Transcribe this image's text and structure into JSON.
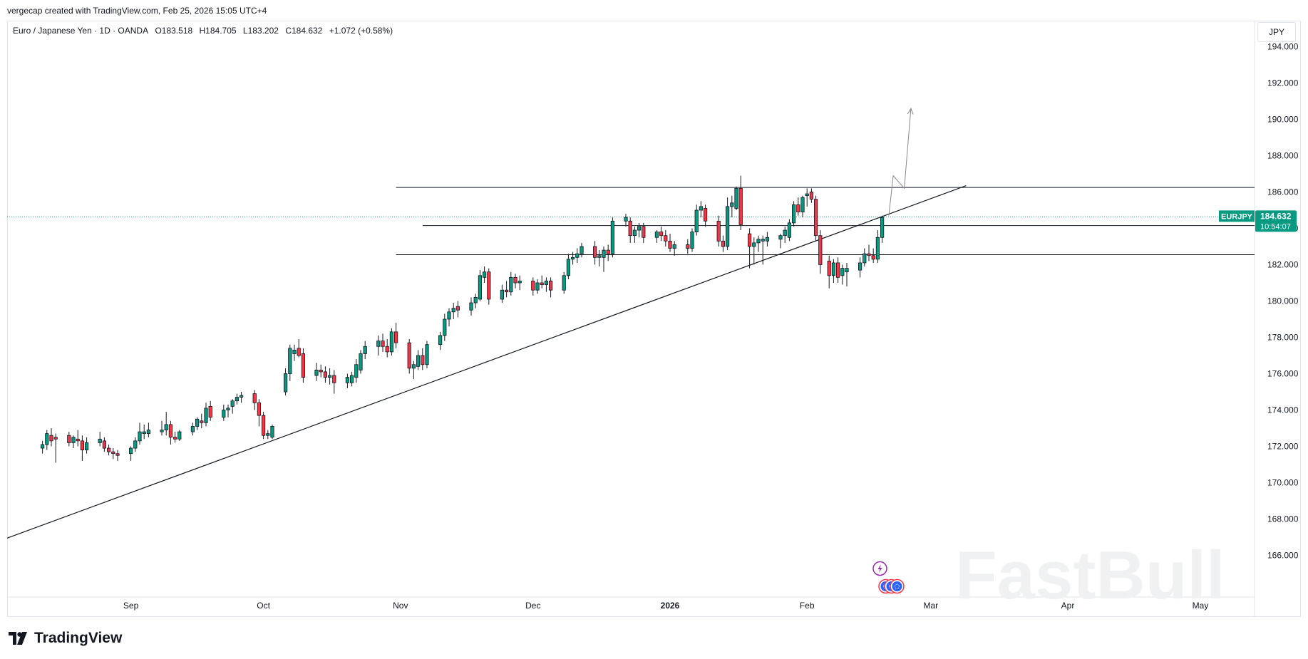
{
  "header": {
    "attribution": "vergecap created with TradingView.com, Feb 25, 2026 15:05 UTC+4"
  },
  "symbol": {
    "name": "Euro / Japanese Yen · 1D · OANDA",
    "open": "O183.518",
    "high": "H184.705",
    "low": "L183.202",
    "close": "C184.632",
    "change": "+1.072 (+0.58%)"
  },
  "currency_button": "JPY",
  "price_tag": {
    "ticker": "EURJPY",
    "price": "184.632",
    "countdown": "10:54:07",
    "color": "#089981"
  },
  "footer": {
    "brand": "TradingView"
  },
  "watermark": "FastBull",
  "colors": {
    "up": "#089981",
    "down": "#f23645",
    "line": "#131722",
    "drawing": "#888888"
  },
  "chart_data": {
    "type": "candlestick",
    "instrument": "EURJPY",
    "interval": "1D",
    "ylim": [
      164.8,
      195.0
    ],
    "y_ticks": [
      166,
      168,
      170,
      172,
      174,
      176,
      178,
      180,
      182,
      184,
      186,
      188,
      190,
      192,
      194
    ],
    "y_tick_labels": [
      "166.000",
      "168.000",
      "170.000",
      "172.000",
      "174.000",
      "176.000",
      "178.000",
      "180.000",
      "182.000",
      "184.000",
      "186.000",
      "188.000",
      "190.000",
      "192.000",
      "194.000"
    ],
    "x_tick_labels": [
      {
        "label": "Sep",
        "day": 28
      },
      {
        "label": "Oct",
        "day": 58
      },
      {
        "label": "Nov",
        "day": 89
      },
      {
        "label": "Dec",
        "day": 119
      },
      {
        "label": "2026",
        "day": 150,
        "bold": true
      },
      {
        "label": "Feb",
        "day": 181
      },
      {
        "label": "Mar",
        "day": 209
      },
      {
        "label": "Apr",
        "day": 240
      },
      {
        "label": "May",
        "day": 270
      }
    ],
    "candles": [
      {
        "day": 8,
        "o": 171.9,
        "h": 172.3,
        "l": 171.6,
        "c": 172.1
      },
      {
        "day": 9,
        "o": 172.1,
        "h": 172.9,
        "l": 171.8,
        "c": 172.7
      },
      {
        "day": 10,
        "o": 172.6,
        "h": 173.0,
        "l": 172.0,
        "c": 172.3
      },
      {
        "day": 11,
        "o": 172.5,
        "h": 172.7,
        "l": 171.1,
        "c": 172.4
      },
      {
        "day": 14,
        "o": 172.6,
        "h": 172.8,
        "l": 172.0,
        "c": 172.2
      },
      {
        "day": 15,
        "o": 172.2,
        "h": 172.6,
        "l": 171.9,
        "c": 172.5
      },
      {
        "day": 16,
        "o": 172.4,
        "h": 172.9,
        "l": 172.0,
        "c": 172.3
      },
      {
        "day": 17,
        "o": 172.3,
        "h": 172.6,
        "l": 171.2,
        "c": 171.8
      },
      {
        "day": 18,
        "o": 171.8,
        "h": 172.5,
        "l": 171.6,
        "c": 172.2
      },
      {
        "day": 21,
        "o": 172.2,
        "h": 172.8,
        "l": 172.0,
        "c": 172.4
      },
      {
        "day": 22,
        "o": 172.3,
        "h": 172.5,
        "l": 171.7,
        "c": 171.9
      },
      {
        "day": 23,
        "o": 171.9,
        "h": 172.1,
        "l": 171.5,
        "c": 171.7
      },
      {
        "day": 24,
        "o": 171.7,
        "h": 171.9,
        "l": 171.3,
        "c": 171.6
      },
      {
        "day": 25,
        "o": 171.6,
        "h": 171.8,
        "l": 171.2,
        "c": 171.5
      },
      {
        "day": 28,
        "o": 171.6,
        "h": 172.0,
        "l": 171.2,
        "c": 171.9
      },
      {
        "day": 29,
        "o": 171.9,
        "h": 172.5,
        "l": 171.7,
        "c": 172.3
      },
      {
        "day": 30,
        "o": 172.3,
        "h": 173.3,
        "l": 172.1,
        "c": 172.8
      },
      {
        "day": 31,
        "o": 172.7,
        "h": 173.2,
        "l": 172.4,
        "c": 172.8
      },
      {
        "day": 32,
        "o": 172.7,
        "h": 173.3,
        "l": 172.5,
        "c": 172.9
      },
      {
        "day": 35,
        "o": 172.8,
        "h": 173.4,
        "l": 172.6,
        "c": 172.9
      },
      {
        "day": 36,
        "o": 172.9,
        "h": 173.9,
        "l": 172.6,
        "c": 173.2
      },
      {
        "day": 37,
        "o": 173.2,
        "h": 173.4,
        "l": 172.1,
        "c": 172.5
      },
      {
        "day": 38,
        "o": 172.5,
        "h": 172.8,
        "l": 172.2,
        "c": 172.4
      },
      {
        "day": 39,
        "o": 172.4,
        "h": 172.9,
        "l": 172.3,
        "c": 172.8
      },
      {
        "day": 42,
        "o": 172.8,
        "h": 173.3,
        "l": 172.6,
        "c": 173.1
      },
      {
        "day": 43,
        "o": 173.1,
        "h": 173.6,
        "l": 172.9,
        "c": 173.5
      },
      {
        "day": 44,
        "o": 173.4,
        "h": 173.8,
        "l": 173.0,
        "c": 173.3
      },
      {
        "day": 45,
        "o": 173.3,
        "h": 174.4,
        "l": 173.1,
        "c": 174.1
      },
      {
        "day": 46,
        "o": 174.2,
        "h": 174.5,
        "l": 173.4,
        "c": 173.6
      },
      {
        "day": 49,
        "o": 173.6,
        "h": 174.3,
        "l": 173.4,
        "c": 174.0
      },
      {
        "day": 50,
        "o": 174.0,
        "h": 174.3,
        "l": 173.6,
        "c": 174.1
      },
      {
        "day": 51,
        "o": 174.2,
        "h": 174.6,
        "l": 173.8,
        "c": 174.5
      },
      {
        "day": 52,
        "o": 174.5,
        "h": 174.9,
        "l": 174.3,
        "c": 174.7
      },
      {
        "day": 53,
        "o": 174.7,
        "h": 175.0,
        "l": 174.4,
        "c": 174.8
      },
      {
        "day": 56,
        "o": 174.9,
        "h": 175.1,
        "l": 174.0,
        "c": 174.4
      },
      {
        "day": 57,
        "o": 174.4,
        "h": 174.6,
        "l": 173.1,
        "c": 173.7
      },
      {
        "day": 58,
        "o": 173.7,
        "h": 173.9,
        "l": 172.4,
        "c": 172.6
      },
      {
        "day": 59,
        "o": 172.6,
        "h": 172.9,
        "l": 172.4,
        "c": 172.7
      },
      {
        "day": 60,
        "o": 172.5,
        "h": 173.2,
        "l": 172.4,
        "c": 173.1
      },
      {
        "day": 63,
        "o": 175.0,
        "h": 176.3,
        "l": 174.8,
        "c": 176.0
      },
      {
        "day": 64,
        "o": 176.0,
        "h": 177.6,
        "l": 175.6,
        "c": 177.4
      },
      {
        "day": 65,
        "o": 177.1,
        "h": 177.6,
        "l": 176.7,
        "c": 177.3
      },
      {
        "day": 66,
        "o": 177.4,
        "h": 177.9,
        "l": 176.9,
        "c": 177.0
      },
      {
        "day": 67,
        "o": 177.1,
        "h": 177.4,
        "l": 175.5,
        "c": 175.8
      },
      {
        "day": 70,
        "o": 175.9,
        "h": 176.6,
        "l": 175.6,
        "c": 176.2
      },
      {
        "day": 71,
        "o": 176.2,
        "h": 176.5,
        "l": 175.8,
        "c": 176.1
      },
      {
        "day": 72,
        "o": 176.1,
        "h": 176.4,
        "l": 175.5,
        "c": 175.8
      },
      {
        "day": 73,
        "o": 175.8,
        "h": 176.3,
        "l": 175.4,
        "c": 175.9
      },
      {
        "day": 74,
        "o": 175.9,
        "h": 176.2,
        "l": 174.9,
        "c": 175.5
      },
      {
        "day": 77,
        "o": 175.5,
        "h": 176.0,
        "l": 175.2,
        "c": 175.8
      },
      {
        "day": 78,
        "o": 175.5,
        "h": 176.1,
        "l": 175.3,
        "c": 175.9
      },
      {
        "day": 79,
        "o": 175.8,
        "h": 176.8,
        "l": 175.5,
        "c": 176.5
      },
      {
        "day": 80,
        "o": 176.2,
        "h": 177.3,
        "l": 176.0,
        "c": 177.1
      },
      {
        "day": 81,
        "o": 177.1,
        "h": 177.8,
        "l": 176.8,
        "c": 177.5
      },
      {
        "day": 84,
        "o": 177.5,
        "h": 178.1,
        "l": 177.0,
        "c": 177.8
      },
      {
        "day": 85,
        "o": 177.8,
        "h": 178.2,
        "l": 177.2,
        "c": 177.5
      },
      {
        "day": 86,
        "o": 177.5,
        "h": 177.9,
        "l": 176.9,
        "c": 177.2
      },
      {
        "day": 87,
        "o": 177.2,
        "h": 178.5,
        "l": 177.0,
        "c": 178.3
      },
      {
        "day": 88,
        "o": 178.3,
        "h": 178.8,
        "l": 177.4,
        "c": 177.7
      },
      {
        "day": 91,
        "o": 177.7,
        "h": 177.9,
        "l": 176.0,
        "c": 176.3
      },
      {
        "day": 92,
        "o": 176.3,
        "h": 176.7,
        "l": 175.7,
        "c": 176.5
      },
      {
        "day": 93,
        "o": 176.4,
        "h": 177.3,
        "l": 176.2,
        "c": 177.0
      },
      {
        "day": 94,
        "o": 177.0,
        "h": 177.4,
        "l": 176.2,
        "c": 176.5
      },
      {
        "day": 95,
        "o": 176.5,
        "h": 177.8,
        "l": 176.3,
        "c": 177.6
      },
      {
        "day": 98,
        "o": 177.6,
        "h": 178.3,
        "l": 177.3,
        "c": 178.1
      },
      {
        "day": 99,
        "o": 178.1,
        "h": 179.3,
        "l": 177.8,
        "c": 179.0
      },
      {
        "day": 100,
        "o": 179.0,
        "h": 179.6,
        "l": 178.6,
        "c": 179.4
      },
      {
        "day": 101,
        "o": 179.4,
        "h": 179.9,
        "l": 179.0,
        "c": 179.6
      },
      {
        "day": 102,
        "o": 179.7,
        "h": 180.0,
        "l": 179.1,
        "c": 179.5
      },
      {
        "day": 105,
        "o": 179.5,
        "h": 180.2,
        "l": 179.2,
        "c": 179.9
      },
      {
        "day": 106,
        "o": 179.9,
        "h": 180.4,
        "l": 179.6,
        "c": 180.2
      },
      {
        "day": 107,
        "o": 180.1,
        "h": 181.7,
        "l": 180.0,
        "c": 181.4
      },
      {
        "day": 108,
        "o": 181.3,
        "h": 181.9,
        "l": 181.0,
        "c": 181.6
      },
      {
        "day": 109,
        "o": 181.6,
        "h": 181.8,
        "l": 179.8,
        "c": 180.1
      },
      {
        "day": 112,
        "o": 180.1,
        "h": 180.9,
        "l": 179.9,
        "c": 180.6
      },
      {
        "day": 113,
        "o": 180.6,
        "h": 181.1,
        "l": 180.2,
        "c": 180.5
      },
      {
        "day": 114,
        "o": 180.5,
        "h": 181.6,
        "l": 180.3,
        "c": 181.3
      },
      {
        "day": 115,
        "o": 181.3,
        "h": 181.5,
        "l": 180.7,
        "c": 181.0
      },
      {
        "day": 116,
        "o": 181.0,
        "h": 181.4,
        "l": 180.6,
        "c": 181.1
      },
      {
        "day": 119,
        "o": 181.1,
        "h": 181.3,
        "l": 180.3,
        "c": 180.6
      },
      {
        "day": 120,
        "o": 180.6,
        "h": 181.2,
        "l": 180.4,
        "c": 181.0
      },
      {
        "day": 121,
        "o": 181.0,
        "h": 181.4,
        "l": 180.7,
        "c": 180.9
      },
      {
        "day": 122,
        "o": 180.9,
        "h": 181.3,
        "l": 180.5,
        "c": 181.1
      },
      {
        "day": 123,
        "o": 181.1,
        "h": 181.3,
        "l": 180.2,
        "c": 180.6
      },
      {
        "day": 126,
        "o": 180.6,
        "h": 181.6,
        "l": 180.4,
        "c": 181.4
      },
      {
        "day": 127,
        "o": 181.4,
        "h": 182.6,
        "l": 181.2,
        "c": 182.3
      },
      {
        "day": 128,
        "o": 182.3,
        "h": 182.7,
        "l": 182.0,
        "c": 182.4
      },
      {
        "day": 129,
        "o": 182.4,
        "h": 182.9,
        "l": 182.1,
        "c": 182.6
      },
      {
        "day": 130,
        "o": 182.6,
        "h": 183.2,
        "l": 182.4,
        "c": 183.0
      },
      {
        "day": 133,
        "o": 183.0,
        "h": 183.3,
        "l": 182.0,
        "c": 182.4
      },
      {
        "day": 134,
        "o": 182.4,
        "h": 182.8,
        "l": 181.9,
        "c": 182.5
      },
      {
        "day": 135,
        "o": 182.4,
        "h": 183.0,
        "l": 181.6,
        "c": 182.8
      },
      {
        "day": 136,
        "o": 182.8,
        "h": 183.1,
        "l": 182.2,
        "c": 182.6
      },
      {
        "day": 137,
        "o": 182.6,
        "h": 184.6,
        "l": 182.4,
        "c": 184.4
      },
      {
        "day": 140,
        "o": 184.4,
        "h": 184.8,
        "l": 184.1,
        "c": 184.6
      },
      {
        "day": 141,
        "o": 184.4,
        "h": 184.6,
        "l": 183.2,
        "c": 183.6
      },
      {
        "day": 142,
        "o": 183.6,
        "h": 184.1,
        "l": 183.2,
        "c": 183.9
      },
      {
        "day": 143,
        "o": 183.9,
        "h": 184.3,
        "l": 183.5,
        "c": 184.1
      },
      {
        "day": 144,
        "o": 184.1,
        "h": 184.3,
        "l": 183.2,
        "c": 183.5
      },
      {
        "day": 147,
        "o": 183.5,
        "h": 183.9,
        "l": 183.2,
        "c": 183.8
      },
      {
        "day": 148,
        "o": 183.8,
        "h": 184.1,
        "l": 183.3,
        "c": 183.6
      },
      {
        "day": 149,
        "o": 183.6,
        "h": 183.9,
        "l": 183.0,
        "c": 183.3
      },
      {
        "day": 150,
        "o": 183.3,
        "h": 183.7,
        "l": 182.7,
        "c": 182.9
      },
      {
        "day": 151,
        "o": 182.9,
        "h": 183.3,
        "l": 182.5,
        "c": 183.1
      },
      {
        "day": 154,
        "o": 183.1,
        "h": 183.4,
        "l": 182.6,
        "c": 182.9
      },
      {
        "day": 155,
        "o": 182.9,
        "h": 184.0,
        "l": 182.7,
        "c": 183.8
      },
      {
        "day": 156,
        "o": 183.8,
        "h": 185.3,
        "l": 183.6,
        "c": 185.0
      },
      {
        "day": 157,
        "o": 185.0,
        "h": 185.5,
        "l": 184.6,
        "c": 185.2
      },
      {
        "day": 158,
        "o": 185.1,
        "h": 185.3,
        "l": 184.1,
        "c": 184.4
      },
      {
        "day": 161,
        "o": 184.4,
        "h": 184.7,
        "l": 183.0,
        "c": 183.3
      },
      {
        "day": 162,
        "o": 183.3,
        "h": 183.6,
        "l": 182.7,
        "c": 183.0
      },
      {
        "day": 163,
        "o": 183.0,
        "h": 185.7,
        "l": 182.8,
        "c": 185.2
      },
      {
        "day": 164,
        "o": 185.2,
        "h": 185.8,
        "l": 184.6,
        "c": 185.4
      },
      {
        "day": 165,
        "o": 185.1,
        "h": 186.3,
        "l": 185.0,
        "c": 186.2
      },
      {
        "day": 166,
        "o": 186.2,
        "h": 186.9,
        "l": 183.9,
        "c": 184.2
      },
      {
        "day": 168,
        "o": 183.7,
        "h": 184.0,
        "l": 181.8,
        "c": 183.0
      },
      {
        "day": 169,
        "o": 183.0,
        "h": 183.5,
        "l": 182.0,
        "c": 183.2
      },
      {
        "day": 170,
        "o": 183.2,
        "h": 183.6,
        "l": 182.7,
        "c": 183.4
      },
      {
        "day": 171,
        "o": 183.3,
        "h": 183.6,
        "l": 182.0,
        "c": 183.4
      },
      {
        "day": 172,
        "o": 183.3,
        "h": 183.8,
        "l": 183.0,
        "c": 183.5
      },
      {
        "day": 175,
        "o": 183.4,
        "h": 183.7,
        "l": 182.9,
        "c": 183.6
      },
      {
        "day": 176,
        "o": 183.6,
        "h": 184.1,
        "l": 183.2,
        "c": 183.9
      },
      {
        "day": 177,
        "o": 183.5,
        "h": 184.5,
        "l": 183.3,
        "c": 184.3
      },
      {
        "day": 178,
        "o": 184.3,
        "h": 185.5,
        "l": 184.1,
        "c": 185.3
      },
      {
        "day": 179,
        "o": 185.3,
        "h": 185.7,
        "l": 184.7,
        "c": 184.9
      },
      {
        "day": 180,
        "o": 184.9,
        "h": 185.8,
        "l": 184.6,
        "c": 185.7
      },
      {
        "day": 181,
        "o": 185.8,
        "h": 186.2,
        "l": 185.2,
        "c": 185.9
      },
      {
        "day": 182,
        "o": 186.0,
        "h": 186.2,
        "l": 185.4,
        "c": 185.6
      },
      {
        "day": 183,
        "o": 185.6,
        "h": 185.8,
        "l": 183.3,
        "c": 183.6
      },
      {
        "day": 184,
        "o": 183.6,
        "h": 183.9,
        "l": 181.5,
        "c": 182.0
      },
      {
        "day": 186,
        "o": 182.2,
        "h": 182.5,
        "l": 180.7,
        "c": 181.4
      },
      {
        "day": 187,
        "o": 181.4,
        "h": 182.3,
        "l": 181.0,
        "c": 182.1
      },
      {
        "day": 188,
        "o": 182.1,
        "h": 182.4,
        "l": 181.0,
        "c": 181.3
      },
      {
        "day": 189,
        "o": 181.4,
        "h": 182.0,
        "l": 180.9,
        "c": 181.8
      },
      {
        "day": 190,
        "o": 181.6,
        "h": 182.1,
        "l": 180.8,
        "c": 181.8
      },
      {
        "day": 193,
        "o": 181.7,
        "h": 182.4,
        "l": 181.3,
        "c": 182.1
      },
      {
        "day": 194,
        "o": 182.1,
        "h": 182.9,
        "l": 181.9,
        "c": 182.6
      },
      {
        "day": 195,
        "o": 182.6,
        "h": 183.1,
        "l": 182.2,
        "c": 182.5
      },
      {
        "day": 196,
        "o": 182.5,
        "h": 182.9,
        "l": 182.1,
        "c": 182.3
      },
      {
        "day": 197,
        "o": 182.3,
        "h": 183.9,
        "l": 182.1,
        "c": 183.5
      },
      {
        "day": 198,
        "o": 183.5,
        "h": 184.7,
        "l": 183.2,
        "c": 184.6
      }
    ],
    "horizontal_lines": [
      {
        "price": 186.25,
        "from_day": 88
      },
      {
        "price": 184.15,
        "from_day": 94
      },
      {
        "price": 182.55,
        "from_day": 88
      }
    ],
    "trendline": {
      "start": {
        "day": 0,
        "price": 166.95
      },
      "end": {
        "day": 217,
        "price": 186.35
      }
    },
    "projection_path": [
      {
        "day": 199.5,
        "price": 184.7
      },
      {
        "day": 200.5,
        "price": 186.9
      },
      {
        "day": 203,
        "price": 186.2
      },
      {
        "day": 204.5,
        "price": 190.6
      }
    ],
    "current_price": 184.632
  }
}
